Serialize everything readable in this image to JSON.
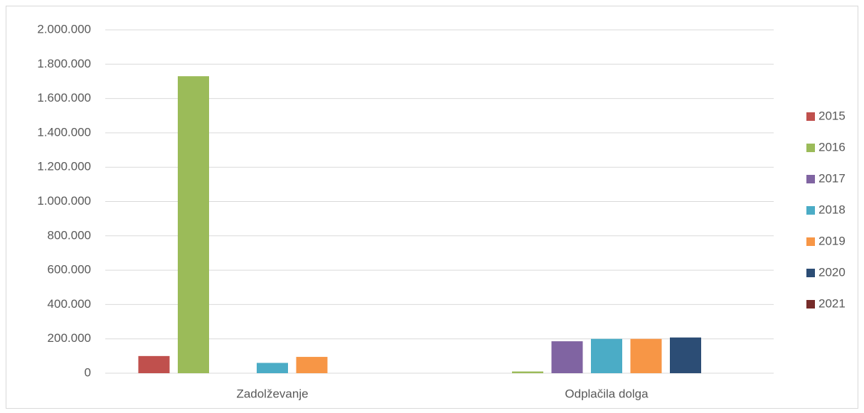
{
  "chart_data": {
    "type": "bar",
    "categories": [
      "Zadolževanje",
      "Odplačila dolga"
    ],
    "series": [
      {
        "name": "2015",
        "color": "#c0504d",
        "values": [
          100000,
          0
        ]
      },
      {
        "name": "2016",
        "color": "#9bbb59",
        "values": [
          1730000,
          10000
        ]
      },
      {
        "name": "2017",
        "color": "#8064a2",
        "values": [
          0,
          186000
        ]
      },
      {
        "name": "2018",
        "color": "#4bacc6",
        "values": [
          60000,
          200000
        ]
      },
      {
        "name": "2019",
        "color": "#f79646",
        "values": [
          95000,
          200000
        ]
      },
      {
        "name": "2020",
        "color": "#2c4d75",
        "values": [
          0,
          208000
        ]
      },
      {
        "name": "2021",
        "color": "#772c2a",
        "values": [
          0,
          0
        ]
      }
    ],
    "ylim": [
      0,
      2000000
    ],
    "yticks": [
      0,
      {
        "value": 200000,
        "label": "200.000"
      },
      {
        "value": 400000,
        "label": "400.000"
      },
      {
        "value": 600000,
        "label": "600.000"
      },
      {
        "value": 800000,
        "label": "800.000"
      },
      {
        "value": 1000000,
        "label": "1.000.000"
      },
      {
        "value": 1200000,
        "label": "1.200.000"
      },
      {
        "value": 1400000,
        "label": "1.400.000"
      },
      {
        "value": 1600000,
        "label": "1.600.000"
      },
      {
        "value": 1800000,
        "label": "1.800.000"
      },
      {
        "value": 2000000,
        "label": "2.000.000"
      }
    ],
    "grid": true,
    "legend": "right"
  }
}
